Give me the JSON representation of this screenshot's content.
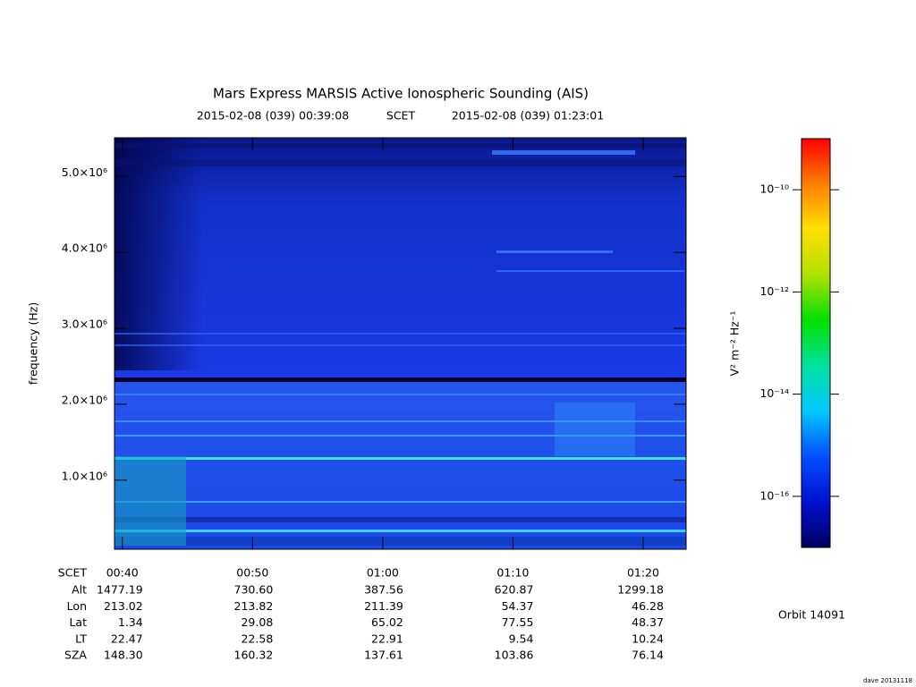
{
  "chart_data": {
    "type": "spectrogram",
    "title": "Mars Express MARSIS Active Ionospheric Sounding (AIS)",
    "subtitle": {
      "start": "2015-02-08 (039) 00:39:08",
      "label": "SCET",
      "end": "2015-02-08 (039) 01:23:01"
    },
    "y_label": "frequency (Hz)",
    "ylim": [
      90000,
      5510000
    ],
    "yticks": [
      {
        "value": 1000000,
        "label": "1.0×10⁶"
      },
      {
        "value": 2000000,
        "label": "2.0×10⁶"
      },
      {
        "value": 3000000,
        "label": "3.0×10⁶"
      },
      {
        "value": 4000000,
        "label": "4.0×10⁶"
      },
      {
        "value": 5000000,
        "label": "5.0×10⁶"
      }
    ],
    "x_label": "SCET",
    "xlim": [
      39.4,
      83.3
    ],
    "xticks": [
      {
        "value": 40,
        "label": "00:40"
      },
      {
        "value": 50,
        "label": "00:50"
      },
      {
        "value": 60,
        "label": "01:00"
      },
      {
        "value": 70,
        "label": "01:10"
      },
      {
        "value": 80,
        "label": "01:20"
      }
    ],
    "ephemeris": [
      {
        "name": "Alt",
        "values": [
          "1477.19",
          "730.60",
          "387.56",
          "620.87",
          "1299.18"
        ]
      },
      {
        "name": "Lon",
        "values": [
          "213.02",
          "213.82",
          "211.39",
          "54.37",
          "46.28"
        ]
      },
      {
        "name": "Lat",
        "values": [
          "1.34",
          "29.08",
          "65.02",
          "77.55",
          "48.37"
        ]
      },
      {
        "name": "LT",
        "values": [
          "22.47",
          "22.58",
          "22.91",
          "9.54",
          "10.24"
        ]
      },
      {
        "name": "SZA",
        "values": [
          "148.30",
          "160.32",
          "137.61",
          "103.86",
          "76.14"
        ]
      }
    ],
    "colorbar": {
      "label": "V² m⁻² Hz⁻¹",
      "log_scale": true,
      "lim": [
        1e-17,
        1e-09
      ],
      "ticks": [
        {
          "value": 1e-16,
          "label": "10⁻¹⁶"
        },
        {
          "value": 1e-14,
          "label": "10⁻¹⁴"
        },
        {
          "value": 1e-12,
          "label": "10⁻¹²"
        },
        {
          "value": 1e-10,
          "label": "10⁻¹⁰"
        }
      ],
      "colormap": [
        "#000060",
        "#0010d0",
        "#0050ff",
        "#00c8ff",
        "#00e0a0",
        "#00e000",
        "#b0e000",
        "#ffe000",
        "#ff8000",
        "#ff0000"
      ]
    },
    "orbit": "Orbit 14091",
    "footer": "dave 20131118"
  }
}
